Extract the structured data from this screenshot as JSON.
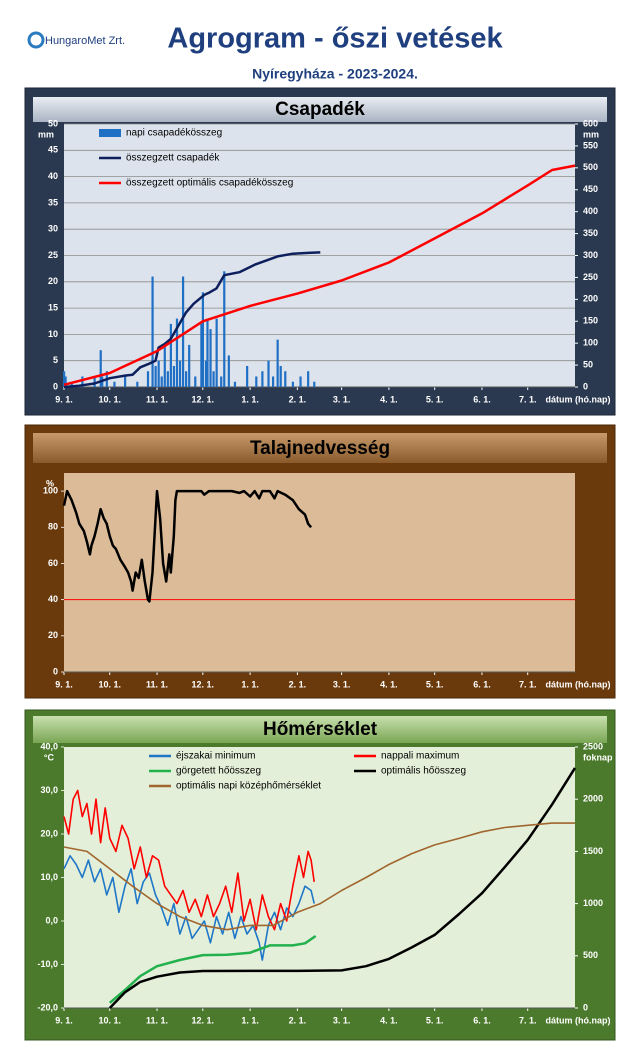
{
  "header": {
    "logo": "HungaroMet Zrt.",
    "title": "Agrogram - őszi vetések",
    "subtitle": "Nyíregyháza  - 2023-2024."
  },
  "chart_data": [
    {
      "type": "combo",
      "title": "Csapadék",
      "y_unit": "mm",
      "y2_unit": "mm",
      "x_label": "dátum (hó.nap)",
      "xlim": [
        0,
        335
      ],
      "xticks": [
        {
          "value": 0,
          "label": "9. 1."
        },
        {
          "value": 30,
          "label": "10. 1."
        },
        {
          "value": 61,
          "label": "11. 1."
        },
        {
          "value": 91,
          "label": "12. 1."
        },
        {
          "value": 122,
          "label": "1. 1."
        },
        {
          "value": 153,
          "label": "2. 1."
        },
        {
          "value": 182,
          "label": "3. 1."
        },
        {
          "value": 213,
          "label": "4. 1."
        },
        {
          "value": 243,
          "label": "5. 1."
        },
        {
          "value": 274,
          "label": "6. 1."
        },
        {
          "value": 304,
          "label": "7. 1."
        }
      ],
      "ylim": [
        0,
        50
      ],
      "yticks": [
        0,
        5,
        10,
        15,
        20,
        25,
        30,
        35,
        40,
        45,
        50
      ],
      "y2lim": [
        0,
        600
      ],
      "y2ticks": [
        0,
        50,
        100,
        150,
        200,
        250,
        300,
        350,
        400,
        450,
        500,
        550,
        600
      ],
      "grid": true,
      "legend": "upper left",
      "series": [
        {
          "name": "napi csapadékösszeg",
          "type": "bar",
          "color": "#1f6fc5",
          "x": [
            0,
            1,
            5,
            12,
            20,
            24,
            25,
            28,
            33,
            40,
            48,
            55,
            58,
            60,
            62,
            64,
            66,
            68,
            70,
            72,
            74,
            76,
            78,
            80,
            82,
            86,
            90,
            91,
            93,
            94,
            96,
            98,
            100,
            103,
            105,
            108,
            112,
            120,
            126,
            130,
            134,
            137,
            140,
            142,
            145,
            150,
            155,
            160,
            164
          ],
          "values": [
            3,
            2,
            1,
            2,
            2,
            7,
            2,
            3,
            1,
            2,
            1,
            3,
            21,
            4,
            5,
            2,
            8,
            3,
            12,
            4,
            13,
            5,
            21,
            3,
            8,
            2,
            12,
            18,
            5,
            13,
            11,
            3,
            13,
            2,
            22,
            6,
            1,
            4,
            2,
            3,
            5,
            2,
            9,
            4,
            3,
            1,
            2,
            3,
            1
          ]
        },
        {
          "name": "összegzett csapadék",
          "type": "line",
          "axis": "y2",
          "color": "#0d1f5c",
          "x": [
            0,
            10,
            20,
            30,
            40,
            45,
            50,
            55,
            60,
            62,
            66,
            70,
            75,
            80,
            85,
            92,
            95,
            100,
            105,
            115,
            125,
            140,
            150,
            160,
            168
          ],
          "values": [
            0,
            3,
            8,
            20,
            26,
            28,
            45,
            52,
            60,
            90,
            98,
            110,
            140,
            170,
            190,
            210,
            215,
            225,
            255,
            262,
            279,
            298,
            304,
            306,
            307
          ]
        },
        {
          "name": "összegzett optimális csapadékösszeg",
          "type": "line",
          "axis": "y2",
          "color": "#ff0000",
          "x": [
            0,
            30,
            61,
            91,
            122,
            153,
            182,
            213,
            243,
            274,
            304,
            320,
            335
          ],
          "values": [
            5,
            32,
            82,
            150,
            185,
            213,
            243,
            284,
            339,
            396,
            460,
            495,
            505
          ]
        }
      ]
    },
    {
      "type": "line",
      "title": "Talajnedvesség",
      "y_unit": "%",
      "x_label": "dátum (hó.nap)",
      "xlim": [
        0,
        335
      ],
      "xticks": [
        {
          "value": 0,
          "label": "9. 1."
        },
        {
          "value": 30,
          "label": "10. 1."
        },
        {
          "value": 61,
          "label": "11. 1."
        },
        {
          "value": 91,
          "label": "12. 1."
        },
        {
          "value": 122,
          "label": "1. 1."
        },
        {
          "value": 153,
          "label": "2. 1."
        },
        {
          "value": 182,
          "label": "3. 1."
        },
        {
          "value": 213,
          "label": "4. 1."
        },
        {
          "value": 243,
          "label": "5. 1."
        },
        {
          "value": 274,
          "label": "6. 1."
        },
        {
          "value": 304,
          "label": "7. 1."
        }
      ],
      "ylim": [
        0,
        110
      ],
      "yticks": [
        0,
        20,
        40,
        60,
        80,
        100
      ],
      "grid": false,
      "reference_lines": [
        {
          "value": 40,
          "color": "#ff0000"
        }
      ],
      "series": [
        {
          "type": "line",
          "color": "#000000",
          "x": [
            0,
            2,
            5,
            8,
            10,
            13,
            15,
            17,
            18,
            20,
            22,
            24,
            26,
            28,
            30,
            32,
            34,
            37,
            40,
            42,
            44,
            45,
            47,
            49,
            51,
            53,
            54,
            55,
            56,
            58,
            60,
            61,
            63,
            65,
            67,
            69,
            70,
            72,
            73,
            74,
            80,
            90,
            92,
            95,
            105,
            110,
            115,
            118,
            122,
            125,
            128,
            130,
            135,
            138,
            140,
            145,
            150,
            154,
            158,
            160,
            162
          ],
          "values": [
            92,
            100,
            95,
            88,
            82,
            78,
            72,
            65,
            70,
            75,
            82,
            90,
            85,
            82,
            75,
            70,
            68,
            62,
            58,
            55,
            50,
            45,
            55,
            52,
            62,
            50,
            45,
            40,
            39,
            55,
            85,
            100,
            85,
            60,
            50,
            65,
            55,
            75,
            95,
            100,
            100,
            100,
            98,
            100,
            100,
            100,
            99,
            100,
            97,
            100,
            96,
            100,
            100,
            96,
            100,
            98,
            95,
            90,
            87,
            82,
            80
          ]
        }
      ]
    },
    {
      "type": "line",
      "title": "Hőmérséklet",
      "y_unit": "°C",
      "y2_unit": "foknap",
      "x_label": "dátum (hó.nap)",
      "xlim": [
        0,
        335
      ],
      "xticks": [
        {
          "value": 0,
          "label": "9. 1."
        },
        {
          "value": 30,
          "label": "10. 1."
        },
        {
          "value": 61,
          "label": "11. 1."
        },
        {
          "value": 91,
          "label": "12. 1."
        },
        {
          "value": 122,
          "label": "1. 1."
        },
        {
          "value": 153,
          "label": "2. 1."
        },
        {
          "value": 182,
          "label": "3. 1."
        },
        {
          "value": 213,
          "label": "4. 1."
        },
        {
          "value": 243,
          "label": "5. 1."
        },
        {
          "value": 274,
          "label": "6. 1."
        },
        {
          "value": 304,
          "label": "7. 1."
        }
      ],
      "ylim": [
        -20,
        40
      ],
      "yticks": [
        {
          "value": -20,
          "label": "-20,0"
        },
        {
          "value": -10,
          "label": "-10,0"
        },
        {
          "value": 0,
          "label": "0,0"
        },
        {
          "value": 10,
          "label": "10,0"
        },
        {
          "value": 20,
          "label": "20,0"
        },
        {
          "value": 30,
          "label": "30,0"
        },
        {
          "value": 40,
          "label": "40,0"
        }
      ],
      "y2lim": [
        0,
        2500
      ],
      "y2ticks": [
        0,
        500,
        1000,
        1500,
        2000,
        2500
      ],
      "grid": false,
      "legend": "upper center",
      "series": [
        {
          "name": "éjszakai minimum",
          "type": "line",
          "color": "#1f77c8",
          "x": [
            0,
            4,
            8,
            12,
            16,
            20,
            24,
            28,
            32,
            36,
            40,
            44,
            48,
            52,
            56,
            60,
            64,
            68,
            72,
            76,
            80,
            84,
            88,
            92,
            96,
            100,
            104,
            108,
            112,
            116,
            120,
            124,
            128,
            130,
            134,
            138,
            142,
            146,
            150,
            154,
            158,
            162,
            164
          ],
          "values": [
            12,
            15,
            13,
            10,
            14,
            9,
            12,
            6,
            10,
            2,
            8,
            12,
            4,
            9,
            11,
            6,
            3,
            -1,
            4,
            -3,
            1,
            -4,
            -2,
            0,
            -5,
            1,
            -3,
            2,
            -4,
            1,
            -3,
            -1,
            -5,
            -9,
            -1,
            2,
            -2,
            3,
            1,
            4,
            8,
            7,
            4
          ]
        },
        {
          "name": "nappali maximum",
          "type": "line",
          "color": "#ff0000",
          "x": [
            0,
            3,
            6,
            9,
            12,
            15,
            18,
            21,
            24,
            27,
            30,
            34,
            38,
            42,
            46,
            50,
            54,
            58,
            62,
            66,
            70,
            74,
            78,
            82,
            86,
            90,
            94,
            98,
            102,
            106,
            110,
            114,
            118,
            122,
            126,
            130,
            134,
            138,
            142,
            146,
            150,
            154,
            157,
            160,
            162,
            164
          ],
          "values": [
            24,
            20,
            28,
            30,
            24,
            27,
            20,
            28,
            18,
            26,
            19,
            16,
            22,
            19,
            12,
            17,
            10,
            15,
            14,
            8,
            6,
            4,
            7,
            2,
            5,
            1,
            6,
            1,
            4,
            8,
            2,
            11,
            0,
            5,
            -2,
            6,
            1,
            -2,
            4,
            0,
            8,
            15,
            10,
            16,
            14,
            9
          ]
        },
        {
          "name": "görgetett hőösszeg",
          "type": "line",
          "axis": "y2",
          "color": "#22b14c",
          "x": [
            30,
            40,
            50,
            61,
            76,
            91,
            107,
            122,
            135,
            150,
            158,
            165
          ],
          "values": [
            50,
            172,
            306,
            400,
            460,
            507,
            510,
            530,
            600,
            600,
            620,
            690
          ]
        },
        {
          "name": "optimális hőösszeg",
          "type": "line",
          "axis": "y2",
          "color": "#000000",
          "x": [
            30,
            40,
            50,
            61,
            76,
            91,
            122,
            153,
            182,
            198,
            213,
            228,
            243,
            259,
            274,
            289,
            304,
            320,
            335
          ],
          "values": [
            0,
            150,
            250,
            300,
            340,
            354,
            355,
            355,
            360,
            400,
            470,
            580,
            700,
            900,
            1100,
            1350,
            1610,
            1950,
            2300
          ]
        },
        {
          "name": "optimális napi középhőmérséklet",
          "type": "line",
          "color": "#a0662e",
          "x": [
            0,
            15,
            30,
            45,
            61,
            76,
            91,
            107,
            122,
            137,
            153,
            168,
            182,
            198,
            213,
            228,
            243,
            259,
            274,
            289,
            304,
            320,
            335
          ],
          "values": [
            17,
            16,
            12,
            8,
            4,
            1,
            -1,
            -2,
            -1,
            -1,
            2,
            4,
            7,
            10,
            13,
            15.5,
            17.5,
            19,
            20.5,
            21.5,
            22,
            22.5,
            22.5
          ]
        }
      ]
    }
  ]
}
